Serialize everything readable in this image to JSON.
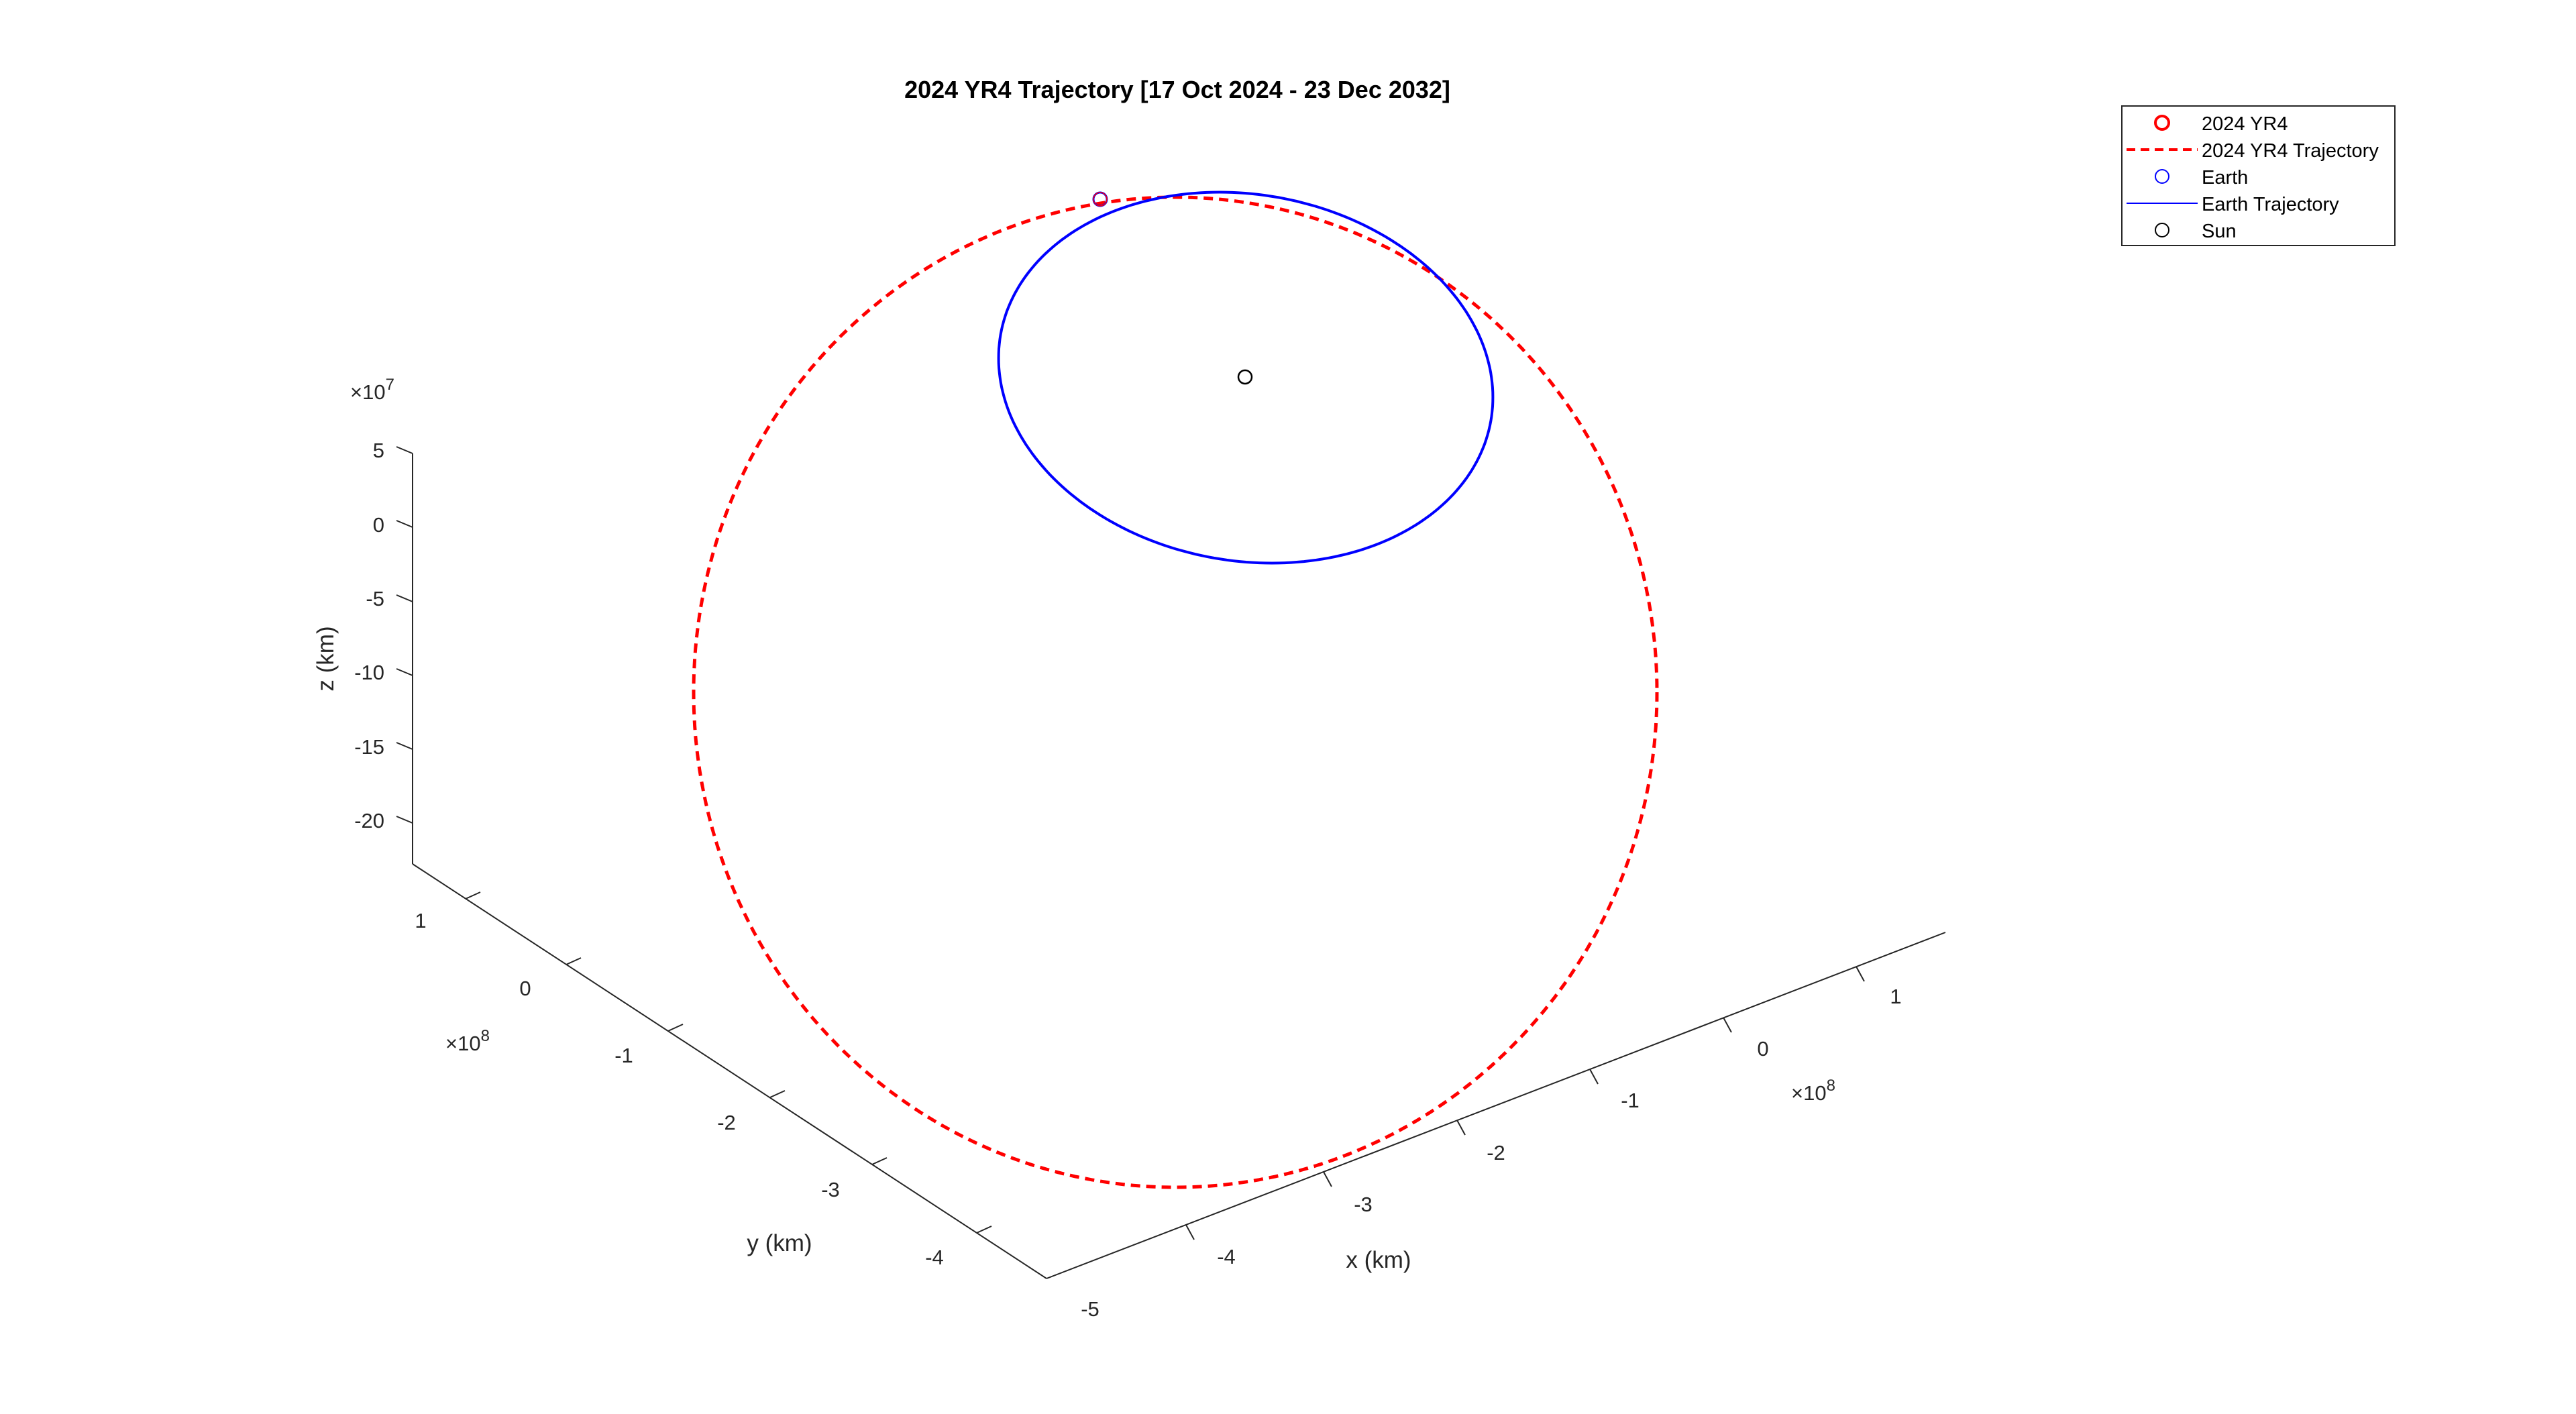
{
  "chart_data": {
    "type": "line",
    "projection": "3d",
    "title": "2024 YR4 Trajectory [17 Oct 2024 - 23 Dec 2032]",
    "xlabel": "x (km)",
    "ylabel": "y (km)",
    "zlabel": "z (km)",
    "x_exponent": {
      "base": "×10",
      "power": "8"
    },
    "y_exponent": {
      "base": "×10",
      "power": "8"
    },
    "z_exponent": {
      "base": "×10",
      "power": "7"
    },
    "x_ticks": [
      {
        "label": "-5"
      },
      {
        "label": "-4"
      },
      {
        "label": "-3"
      },
      {
        "label": "-2"
      },
      {
        "label": "-1"
      },
      {
        "label": "0"
      },
      {
        "label": "1"
      }
    ],
    "y_ticks": [
      {
        "label": "-4"
      },
      {
        "label": "-3"
      },
      {
        "label": "-2"
      },
      {
        "label": "-1"
      },
      {
        "label": "0"
      },
      {
        "label": "1"
      }
    ],
    "z_ticks": [
      {
        "label": "-20"
      },
      {
        "label": "-15"
      },
      {
        "label": "-10"
      },
      {
        "label": "-5"
      },
      {
        "label": "0"
      },
      {
        "label": "5"
      }
    ],
    "grid": false,
    "legend_position": "top-right",
    "series": [
      {
        "name": "2024 YR4",
        "style": "marker-circle",
        "color": "#ff0000",
        "point": {
          "x": -1.0,
          "y": 0.75,
          "z": 5.4
        }
      },
      {
        "name": "2024 YR4 Trajectory",
        "style": "dashed-line",
        "color": "#ff0000",
        "orbit": {
          "center": [
            -1.85,
            -1.55,
            -8.0
          ],
          "a": 3.0,
          "b": 3.0,
          "tilt": 0.0
        }
      },
      {
        "name": "Earth",
        "style": "marker-circle",
        "color": "#0000ff",
        "point": {
          "x": -1.0,
          "y": 0.75,
          "z": 5.4
        }
      },
      {
        "name": "Earth Trajectory",
        "style": "solid-line",
        "color": "#0000ff",
        "orbit": {
          "center": [
            0.0,
            0.0,
            0.0
          ],
          "a": 1.0,
          "b": 1.0,
          "tilt": 0.0
        }
      },
      {
        "name": "Sun",
        "style": "marker-circle",
        "color": "#000000",
        "point": {
          "x": 0.0,
          "y": 0.0,
          "z": 0.0
        }
      }
    ]
  }
}
